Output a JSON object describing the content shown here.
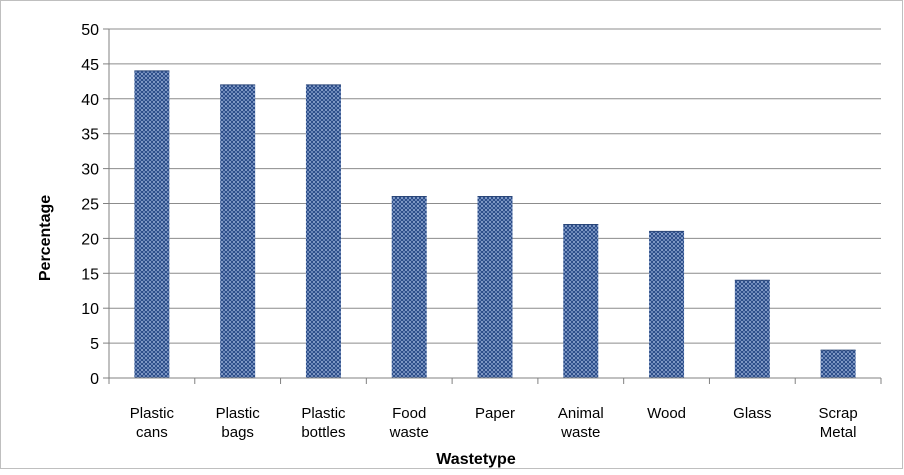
{
  "chart_data": {
    "type": "bar",
    "title": "",
    "xlabel": "Wastetype",
    "ylabel": "Percentage",
    "categories": [
      [
        "Plastic",
        "cans"
      ],
      [
        "Plastic",
        "bags"
      ],
      [
        "Plastic",
        "bottles"
      ],
      [
        "Food",
        "waste"
      ],
      [
        "Paper"
      ],
      [
        "Animal",
        "waste"
      ],
      [
        "Wood"
      ],
      [
        "Glass"
      ],
      [
        "Scrap",
        "Metal"
      ]
    ],
    "values": [
      44,
      42,
      42,
      26,
      26,
      22,
      21,
      14,
      4
    ],
    "ylim": [
      0,
      50
    ],
    "yticks": [
      0,
      5,
      10,
      15,
      20,
      25,
      30,
      35,
      40,
      45,
      50
    ],
    "grid": true,
    "legend": "none",
    "colors": {
      "bar": "#2e4f8a",
      "bar_light": "#7f98c4",
      "grid": "#8c8c8c",
      "axis": "#808080"
    }
  }
}
